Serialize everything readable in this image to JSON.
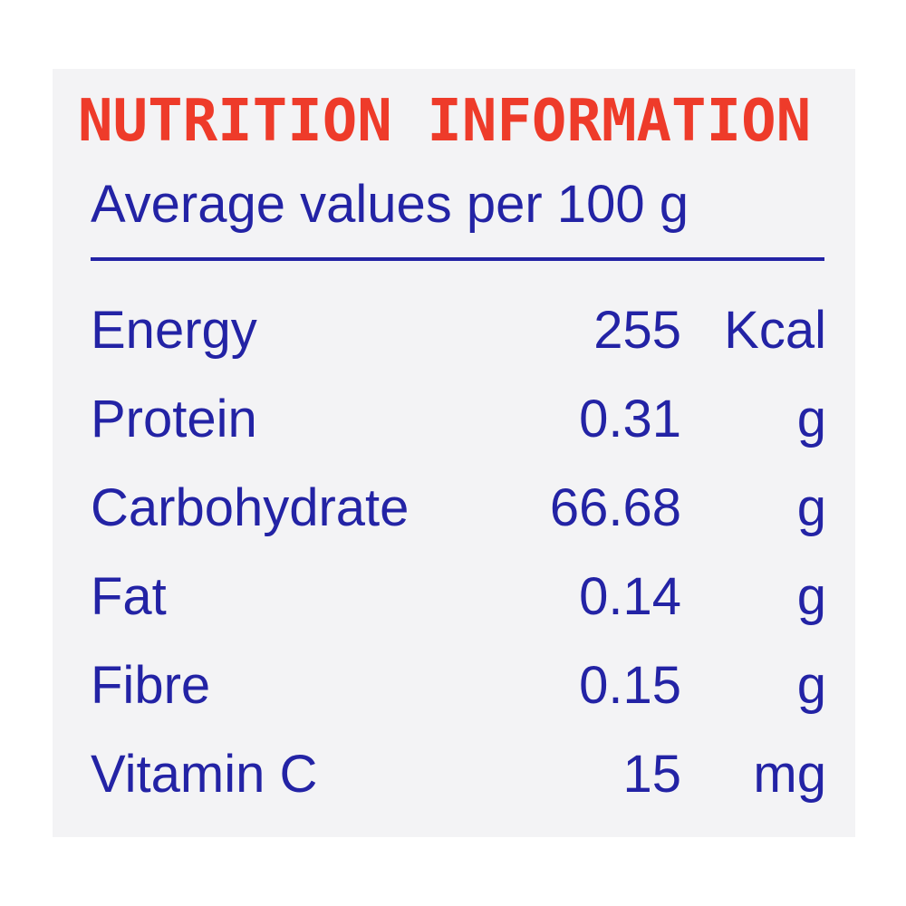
{
  "label": {
    "title": "NUTRITION INFORMATION",
    "subtitle": "Average values per 100 g",
    "rows": [
      {
        "name": "Energy",
        "value": "255",
        "unit": "Kcal"
      },
      {
        "name": "Protein",
        "value": "0.31",
        "unit": "g"
      },
      {
        "name": "Carbohydrate",
        "value": "66.68",
        "unit": "g"
      },
      {
        "name": "Fat",
        "value": "0.14",
        "unit": "g"
      },
      {
        "name": "Fibre",
        "value": "0.15",
        "unit": "g"
      },
      {
        "name": "Vitamin C",
        "value": "15",
        "unit": "mg"
      }
    ],
    "colors": {
      "title": "#ee3b2a",
      "text": "#2323a5",
      "background": "#f3f3f5"
    }
  }
}
